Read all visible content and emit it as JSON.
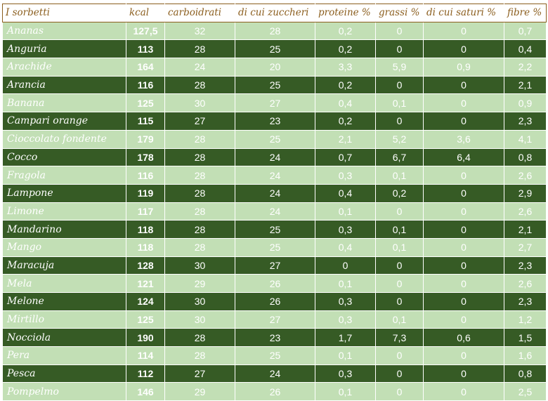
{
  "table": {
    "headers": [
      "I sorbetti",
      "kcal",
      "carboidrati",
      "di cui zuccheri",
      "proteine %",
      "grassi %",
      "di cui saturi %",
      "fibre %"
    ],
    "rows": [
      [
        "Ananas",
        "127,5",
        "32",
        "28",
        "0,2",
        "0",
        "0",
        "0,7"
      ],
      [
        "Anguria",
        "113",
        "28",
        "25",
        "0,2",
        "0",
        "0",
        "0,4"
      ],
      [
        "Arachide",
        "164",
        "24",
        "20",
        "3,3",
        "5,9",
        "0,9",
        "2,2"
      ],
      [
        "Arancia",
        "116",
        "28",
        "25",
        "0,2",
        "0",
        "0",
        "2,1"
      ],
      [
        "Banana",
        "125",
        "30",
        "27",
        "0,4",
        "0,1",
        "0",
        "0,9"
      ],
      [
        "Campari orange",
        "115",
        "27",
        "23",
        "0,2",
        "0",
        "0",
        "2,3"
      ],
      [
        "Cioccolato fondente",
        "179",
        "28",
        "25",
        "2,1",
        "5,2",
        "3,6",
        "4,1"
      ],
      [
        "Cocco",
        "178",
        "28",
        "24",
        "0,7",
        "6,7",
        "6,4",
        "0,8"
      ],
      [
        "Fragola",
        "116",
        "28",
        "24",
        "0,3",
        "0,1",
        "0",
        "2,6"
      ],
      [
        "Lampone",
        "119",
        "28",
        "24",
        "0,4",
        "0,2",
        "0",
        "2,9"
      ],
      [
        "Limone",
        "117",
        "28",
        "24",
        "0,1",
        "0",
        "0",
        "2,6"
      ],
      [
        "Mandarino",
        "118",
        "28",
        "25",
        "0,3",
        "0,1",
        "0",
        "2,1"
      ],
      [
        "Mango",
        "118",
        "28",
        "25",
        "0,4",
        "0,1",
        "0",
        "2,7"
      ],
      [
        "Maracuja",
        "128",
        "30",
        "27",
        "0",
        "0",
        "0",
        "2,3"
      ],
      [
        "Mela",
        "121",
        "29",
        "26",
        "0,1",
        "0",
        "0",
        "2,6"
      ],
      [
        "Melone",
        "124",
        "30",
        "26",
        "0,3",
        "0",
        "0",
        "2,3"
      ],
      [
        "Mirtillo",
        "125",
        "30",
        "27",
        "0,3",
        "0,1",
        "0",
        "1,2"
      ],
      [
        "Nocciola",
        "190",
        "28",
        "23",
        "1,7",
        "7,3",
        "0,6",
        "1,5"
      ],
      [
        "Pera",
        "114",
        "28",
        "25",
        "0,1",
        "0",
        "0",
        "1,6"
      ],
      [
        "Pesca",
        "112",
        "27",
        "24",
        "0,3",
        "0",
        "0",
        "0,8"
      ],
      [
        "Pompelmo",
        "146",
        "29",
        "26",
        "0,1",
        "0",
        "0",
        "2,5"
      ]
    ]
  },
  "colors": {
    "header_text": "#8b5e1e",
    "row_light": "#c2dfb5",
    "row_dark": "#365b25",
    "text": "#ffffff"
  }
}
